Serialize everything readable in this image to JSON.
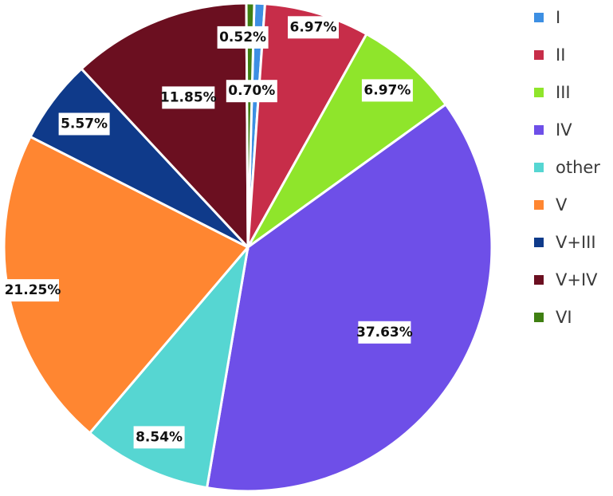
{
  "chart_data": {
    "type": "pie",
    "title": "",
    "legend_position": "right",
    "slices": [
      {
        "label": "I",
        "value": 0.7,
        "value_label": "0.70%",
        "color": "#3d8fe3"
      },
      {
        "label": "II",
        "value": 6.97,
        "value_label": "6.97%",
        "color": "#c72d49"
      },
      {
        "label": "III",
        "value": 6.97,
        "value_label": "6.97%",
        "color": "#8fe52b"
      },
      {
        "label": "IV",
        "value": 37.63,
        "value_label": "37.63%",
        "color": "#6e4fe8"
      },
      {
        "label": "other",
        "value": 8.54,
        "value_label": "8.54%",
        "color": "#56d6d2"
      },
      {
        "label": "V",
        "value": 21.25,
        "value_label": "21.25%",
        "color": "#ff8631"
      },
      {
        "label": "V+III",
        "value": 5.57,
        "value_label": "5.57%",
        "color": "#0f3a8a"
      },
      {
        "label": "V+IV",
        "value": 11.85,
        "value_label": "11.85%",
        "color": "#6b0f20"
      },
      {
        "label": "VI",
        "value": 0.52,
        "value_label": "0.52%",
        "color": "#3f7f12"
      }
    ]
  }
}
